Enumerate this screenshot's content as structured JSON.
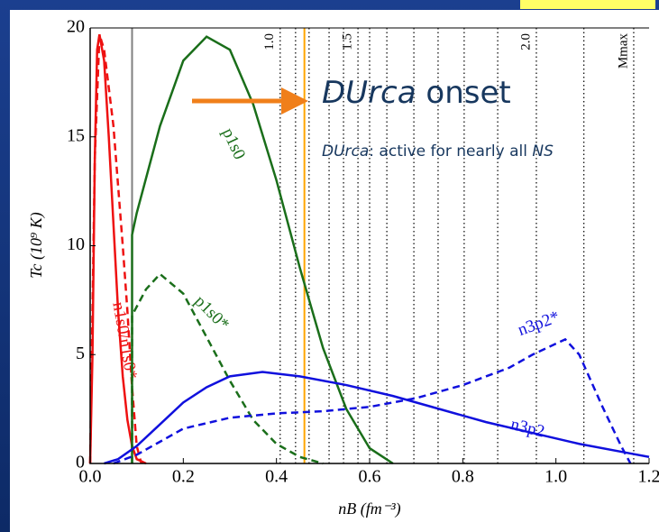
{
  "chart_data": {
    "type": "line",
    "x_label": "nB (fm⁻³)",
    "y_label": "Tc (10⁹ K)",
    "xlim": [
      0,
      1.2
    ],
    "ylim": [
      0,
      20
    ],
    "xticks": [
      {
        "value": 0,
        "label": "0.0"
      },
      0.2,
      0.4,
      0.6,
      0.8,
      {
        "value": 1,
        "label": "1.0"
      },
      1.2
    ],
    "yticks": [
      0,
      5,
      10,
      15,
      20
    ],
    "series": [
      {
        "name": "n1s0/n1s0*",
        "color": "#ee1111",
        "dashed": false,
        "x": [
          0,
          0.005,
          0.01,
          0.015,
          0.02,
          0.03,
          0.04,
          0.05,
          0.06,
          0.07,
          0.08,
          0.09,
          0.1,
          0.12
        ],
        "values": [
          0,
          5,
          14,
          19,
          19.7,
          18.5,
          15,
          11,
          7,
          4,
          2,
          0.8,
          0.2,
          0
        ]
      },
      {
        "name": null,
        "color": "#ee1111",
        "dashed": true,
        "x": [
          0,
          0.01,
          0.02,
          0.03,
          0.05,
          0.07,
          0.08,
          0.09,
          0.1,
          0.11
        ],
        "values": [
          0,
          14,
          19.7,
          19,
          15.5,
          10,
          7,
          3.5,
          0.8,
          0
        ]
      },
      {
        "name": "p1s0",
        "color": "#1a6e1a",
        "dashed": false,
        "x": [
          0.09,
          0.09,
          0.1,
          0.15,
          0.2,
          0.25,
          0.3,
          0.35,
          0.4,
          0.45,
          0.5,
          0.55,
          0.6,
          0.65
        ],
        "values": [
          0,
          10.5,
          11.5,
          15.5,
          18.5,
          19.6,
          19,
          16.5,
          13,
          9,
          5.3,
          2.5,
          0.7,
          0
        ]
      },
      {
        "name": "p1s0*",
        "color": "#1a6e1a",
        "dashed": true,
        "x": [
          0.09,
          0.09,
          0.12,
          0.15,
          0.2,
          0.25,
          0.3,
          0.35,
          0.4,
          0.45,
          0.5
        ],
        "values": [
          0,
          6.8,
          8,
          8.7,
          7.8,
          5.8,
          3.8,
          2,
          0.9,
          0.3,
          0
        ]
      },
      {
        "name": "n3p2",
        "color": "#1010dd",
        "dashed": false,
        "x": [
          0.03,
          0.06,
          0.1,
          0.15,
          0.2,
          0.25,
          0.3,
          0.37,
          0.45,
          0.55,
          0.65,
          0.75,
          0.85,
          0.95,
          1.05,
          1.15,
          1.2
        ],
        "values": [
          0,
          0.2,
          0.8,
          1.8,
          2.8,
          3.5,
          4,
          4.2,
          4,
          3.6,
          3.1,
          2.5,
          1.9,
          1.4,
          0.9,
          0.5,
          0.3
        ]
      },
      {
        "name": "n3p2*",
        "color": "#1010dd",
        "dashed": true,
        "x": [
          0.05,
          0.1,
          0.15,
          0.2,
          0.3,
          0.4,
          0.5,
          0.6,
          0.7,
          0.8,
          0.9,
          0.95,
          1.0,
          1.02,
          1.05,
          1.1,
          1.14,
          1.16
        ],
        "values": [
          0,
          0.4,
          1,
          1.6,
          2.1,
          2.3,
          2.4,
          2.6,
          3,
          3.6,
          4.4,
          5,
          5.5,
          5.7,
          5,
          2.6,
          0.8,
          0
        ]
      }
    ],
    "vlines": [
      {
        "x": 0.09,
        "color": "#808080"
      },
      {
        "x": 0.46,
        "color": "#ffa500"
      }
    ],
    "mass_lines": {
      "x": [
        0.408,
        0.441,
        0.47,
        0.513,
        0.544,
        0.575,
        0.6,
        0.637,
        0.695,
        0.747,
        0.803,
        0.875,
        0.958,
        1.06,
        1.167
      ],
      "labels": [
        "1.0",
        null,
        null,
        null,
        null,
        "1.5",
        null,
        null,
        null,
        null,
        null,
        null,
        "2.0",
        null,
        "Mmax"
      ]
    },
    "annotations": {
      "onset": [
        "DUrca",
        " onset"
      ],
      "active": [
        "DUrca",
        ": active for nearly all ",
        "NS"
      ]
    }
  }
}
